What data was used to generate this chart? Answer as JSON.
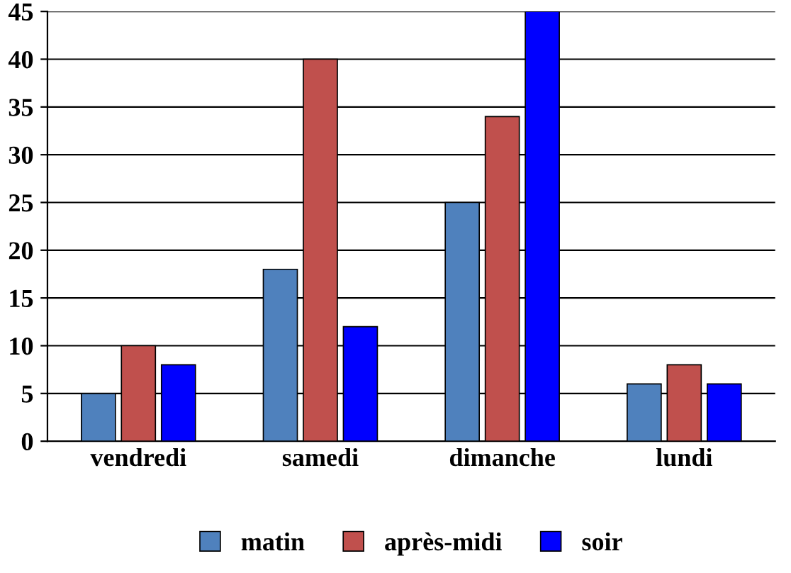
{
  "chart_data": {
    "type": "bar",
    "categories": [
      "vendredi",
      "samedi",
      "dimanche",
      "lundi"
    ],
    "series": [
      {
        "name": "matin",
        "color": "#4f81bd",
        "values": [
          5,
          18,
          25,
          6
        ]
      },
      {
        "name": "après-midi",
        "color": "#c0504d",
        "values": [
          10,
          40,
          34,
          8
        ]
      },
      {
        "name": "soir",
        "color": "#0000ff",
        "values": [
          8,
          12,
          45,
          6
        ]
      }
    ],
    "ylim": [
      0,
      45
    ],
    "yticks": [
      0,
      5,
      10,
      15,
      20,
      25,
      30,
      35,
      40,
      45
    ],
    "grid": "y",
    "legend": "bottom"
  }
}
